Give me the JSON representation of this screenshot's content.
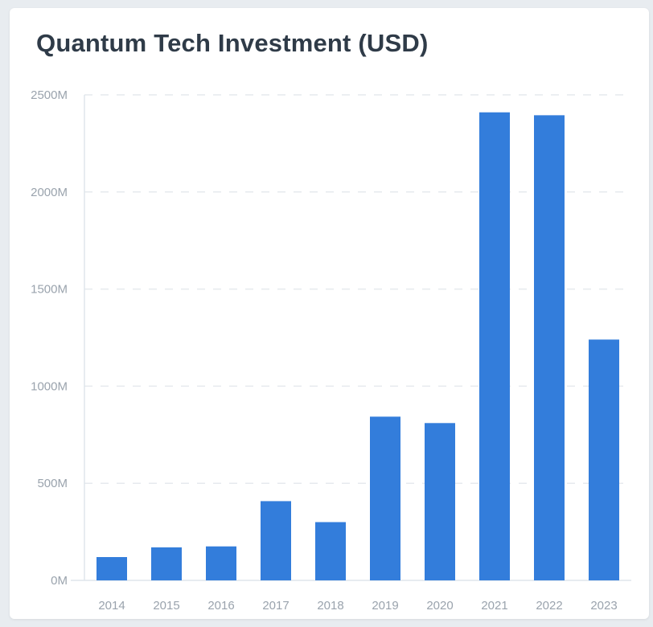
{
  "title": "Quantum Tech Investment (USD)",
  "colors": {
    "bar": "#337ddb",
    "grid": "#e6eaee",
    "axis": "#dfe5ec",
    "label": "#9aa3ad"
  },
  "chart_data": {
    "type": "bar",
    "title": "Quantum Tech Investment (USD)",
    "xlabel": "",
    "ylabel": "",
    "categories": [
      "2014",
      "2015",
      "2016",
      "2017",
      "2018",
      "2019",
      "2020",
      "2021",
      "2022",
      "2023"
    ],
    "values": [
      120,
      170,
      175,
      408,
      300,
      843,
      810,
      2410,
      2395,
      1240
    ],
    "ylim": [
      0,
      2500
    ],
    "yticks": [
      0,
      500,
      1000,
      1500,
      2000,
      2500
    ],
    "ytick_labels": [
      "0M",
      "500M",
      "1000M",
      "1500M",
      "2000M",
      "2500M"
    ],
    "grid": true,
    "legend": "none"
  }
}
